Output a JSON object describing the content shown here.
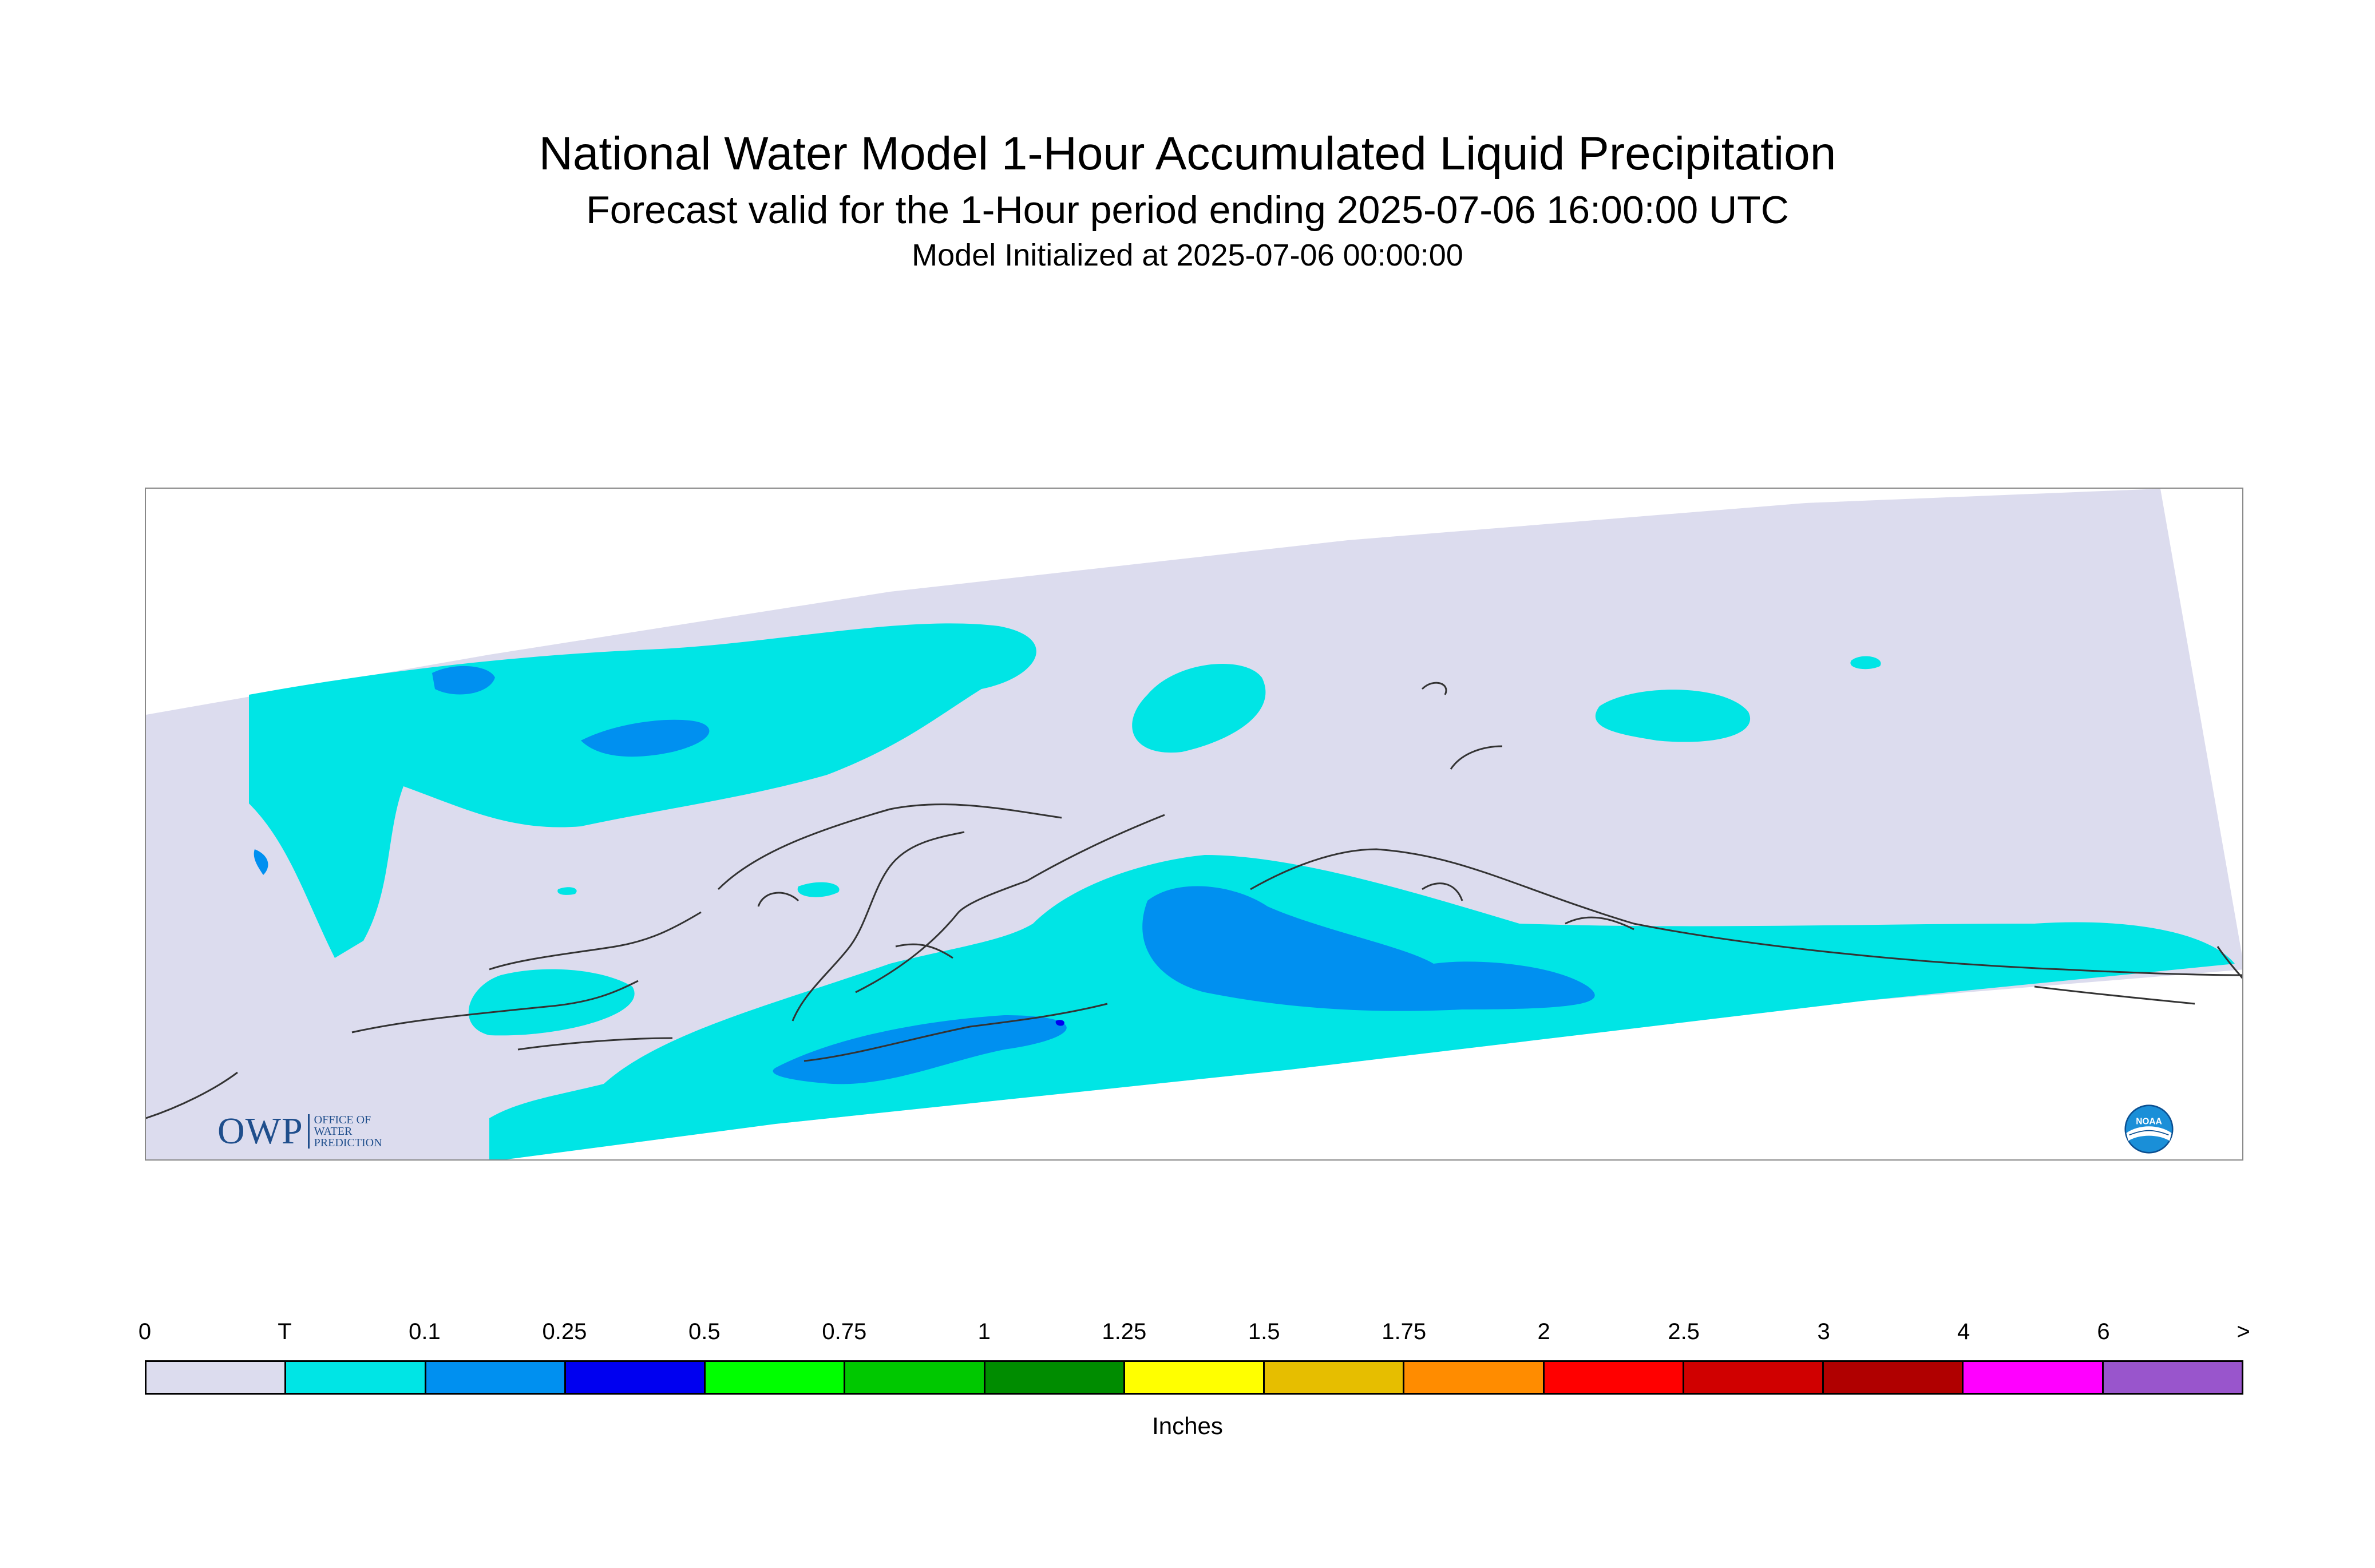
{
  "title": {
    "line1": "National Water Model 1-Hour Accumulated Liquid Precipitation",
    "line2": "Forecast valid for the 1-Hour period ending 2025-07-06 16:00:00 UTC",
    "line3": "Model Initialized at 2025-07-06 00:00:00"
  },
  "logos": {
    "owp_mark": "OWP",
    "owp_line1": "OFFICE OF",
    "owp_line2": "WATER",
    "owp_line3": "PREDICTION",
    "noaa_text": "NOAA"
  },
  "legend": {
    "unit": "Inches",
    "ticks": [
      "0",
      "T",
      "0.1",
      "0.25",
      "0.5",
      "0.75",
      "1",
      "1.25",
      "1.5",
      "1.75",
      "2",
      "2.5",
      "3",
      "4",
      "6",
      ">"
    ],
    "colors": [
      "#dcdcee",
      "#00e5e5",
      "#0090f0",
      "#0000f0",
      "#00ff00",
      "#00c800",
      "#008c00",
      "#ffff00",
      "#e6be00",
      "#ff8c00",
      "#ff0000",
      "#d00000",
      "#b00000",
      "#ff00ff",
      "#9955cc"
    ]
  },
  "map": {
    "colors": {
      "domain": "#dcdcee",
      "trace": "#00e5e5",
      "light": "#0090f0",
      "medium": "#0000f0",
      "coast": "#333333"
    }
  }
}
